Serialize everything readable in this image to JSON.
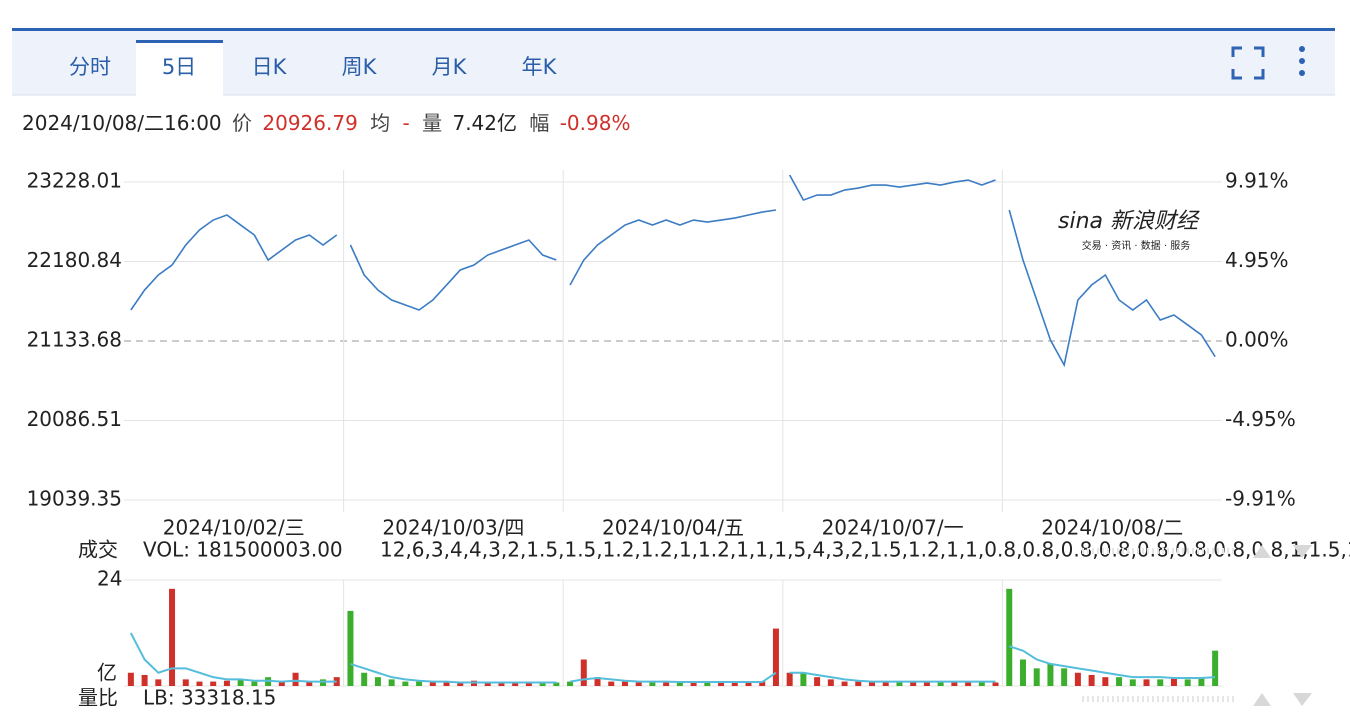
{
  "tabs": [
    "分时",
    "5日",
    "日K",
    "周K",
    "月K",
    "年K"
  ],
  "active_tab": 1,
  "info": {
    "time": "2024/10/08/二16:00",
    "price_label": "价",
    "price": "20926.79",
    "avg_label": "均",
    "avg": "-",
    "vol_label": "量",
    "vol": "7.42亿",
    "change_label": "幅",
    "change": "-0.98%"
  },
  "watermark": {
    "brand": "sina 新浪财经",
    "slogan": "交易 · 资讯 · 数据 · 服务"
  },
  "chart_data": {
    "type": "line",
    "categories": [
      "2024/10/02/三",
      "2024/10/03/四",
      "2024/10/04/五",
      "2024/10/07/一",
      "2024/10/08/二"
    ],
    "color": "#3b7cc4",
    "up_color": "#d0302a",
    "down_color": "#3cae2e",
    "ylim": [
      19039.35,
      23228.01
    ],
    "yticks": [
      19039.35,
      20086.51,
      21133.68,
      22180.84,
      23228.01
    ],
    "y2lim": [
      -9.91,
      9.91
    ],
    "y2ticks": [
      {
        "value": -9.91,
        "label": "-9.91%"
      },
      {
        "value": -4.95,
        "label": "-4.95%"
      },
      {
        "value": 0,
        "label": "0.00%"
      },
      {
        "value": 4.95,
        "label": "4.95%"
      },
      {
        "value": 9.91,
        "label": "9.91%"
      }
    ],
    "grid": true,
    "price": [
      [
        21542,
        21805,
        22003,
        22134,
        22398,
        22596,
        22727,
        22793,
        22661,
        22530,
        22200,
        22332,
        22464,
        22530,
        22398,
        22530
      ],
      [
        22398,
        22003,
        21805,
        21674,
        21608,
        21542,
        21674,
        21871,
        22069,
        22134,
        22266,
        22332,
        22398,
        22464,
        22266,
        22200
      ],
      [
        21871,
        22200,
        22398,
        22530,
        22661,
        22727,
        22661,
        22727,
        22661,
        22727,
        22700,
        22727,
        22753,
        22793,
        22832,
        22859
      ],
      [
        23320,
        22990,
        23056,
        23056,
        23122,
        23148,
        23188,
        23188,
        23161,
        23188,
        23214,
        23188,
        23227,
        23254,
        23188,
        23254
      ],
      [
        22859,
        22200,
        21674,
        21147,
        20818,
        21674,
        21871,
        22003,
        21674,
        21542,
        21674,
        21410,
        21476,
        21345,
        21213,
        20926.79
      ]
    ],
    "volume_panel": {
      "title": "成交",
      "vol": "VOL: 181500003.00",
      "ma10": [
        [
          12,
          6,
          3,
          4,
          4,
          3,
          2,
          1.5,
          1.5,
          1.2,
          1.2,
          1,
          1.2,
          1,
          1,
          1
        ],
        [
          5,
          4,
          3,
          2,
          1.5,
          1.2,
          1,
          1,
          0.8,
          0.8,
          0.8,
          0.8,
          0.8,
          0.8,
          0.8,
          0.8
        ],
        [
          1,
          1.5,
          1.8,
          1.5,
          1.2,
          1,
          1,
          1,
          0.9,
          0.9,
          0.9,
          0.9,
          0.9,
          0.9,
          0.9,
          3
        ],
        [
          3,
          3,
          2.5,
          2,
          1.5,
          1.2,
          1,
          1,
          1,
          1,
          1,
          1,
          1,
          1,
          1,
          1
        ],
        [
          9,
          8,
          6,
          5,
          4.5,
          4,
          3.5,
          3,
          2.5,
          2,
          2,
          2,
          1.8,
          1.8,
          1.8,
          2
        ]
      ],
      "ratio_title": "量比",
      "lb": "LB: 33318.15",
      "unit": "亿",
      "ma_color": "#55bedc",
      "ylim": [
        0,
        24
      ],
      "yticks": [
        24
      ],
      "volume": [
        [
          3,
          2.5,
          1.5,
          22,
          1.5,
          1,
          1,
          1.2,
          1.5,
          1,
          2,
          1,
          3,
          1,
          1.5,
          2
        ],
        [
          17,
          3,
          2,
          1.5,
          1,
          1,
          0.8,
          1,
          1,
          1.2,
          0.8,
          1,
          1,
          0.8,
          1,
          0.8
        ],
        [
          1,
          6,
          2,
          1,
          1,
          0.8,
          0.8,
          1,
          1,
          0.8,
          0.8,
          1,
          1,
          0.8,
          1,
          13
        ],
        [
          3,
          3,
          2,
          1.5,
          1,
          1,
          1,
          1,
          0.8,
          0.8,
          1,
          0.8,
          1,
          1,
          1,
          0.8
        ],
        [
          22,
          6,
          4,
          5,
          4,
          3,
          2.5,
          2,
          2,
          1.5,
          1.5,
          1.5,
          2,
          1.5,
          2,
          8
        ]
      ]
    }
  }
}
